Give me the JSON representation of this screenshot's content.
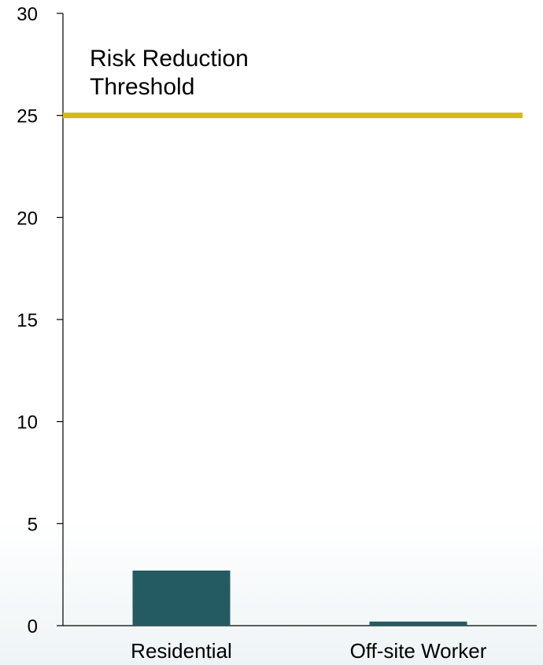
{
  "chart_data": {
    "type": "bar",
    "categories": [
      "Residential",
      "Off-site Worker"
    ],
    "values": [
      2.7,
      0.2
    ],
    "ylim": [
      0,
      30
    ],
    "yticks": [
      0,
      5,
      10,
      15,
      20,
      25,
      30
    ],
    "title": "",
    "xlabel": "",
    "ylabel": "",
    "threshold": {
      "value": 25,
      "label_lines": [
        "Risk Reduction",
        "Threshold"
      ]
    },
    "colors": {
      "bar": "#245b63",
      "threshold": "#d4bb10",
      "axis": "#000000"
    },
    "grid": false,
    "legend": "none"
  }
}
